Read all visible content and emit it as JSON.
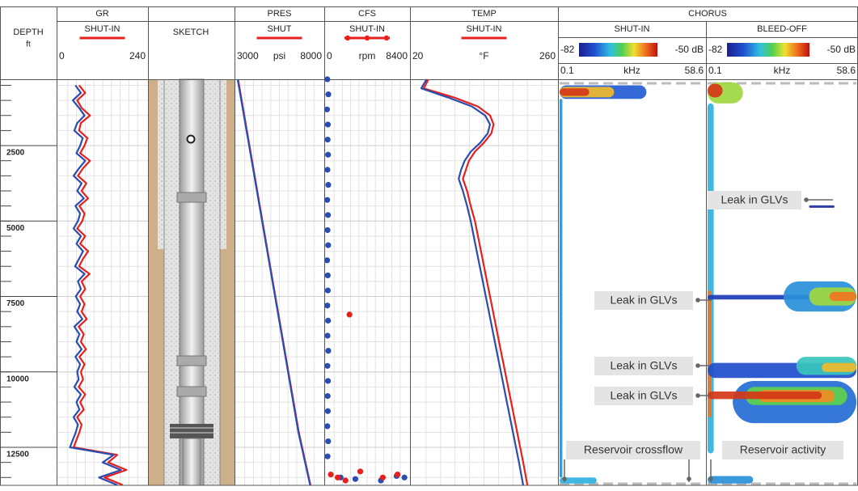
{
  "depth_axis": {
    "title": "DEPTH",
    "unit": "ft",
    "ylim": [
      300,
      13760
    ],
    "yticks": [
      2500,
      5000,
      7500,
      10000,
      12500
    ]
  },
  "sketch": {
    "title": "SKETCH"
  },
  "chart_data": [
    {
      "type": "line",
      "title": "GR",
      "xlim": [
        0,
        240
      ],
      "xticks": [
        0,
        240
      ],
      "series": [
        {
          "name": "SHUT-IN",
          "color": "#e8201c",
          "depth": [
            500,
            750,
            1000,
            1250,
            1500,
            1750,
            2000,
            2250,
            2500,
            2750,
            3000,
            3250,
            3500,
            3750,
            4000,
            4250,
            4500,
            4750,
            5000,
            5250,
            5500,
            5750,
            6000,
            6250,
            6500,
            6750,
            7000,
            7250,
            7500,
            7750,
            8000,
            8250,
            8500,
            8750,
            9000,
            9250,
            9500,
            9750,
            10000,
            10250,
            10500,
            10750,
            11000,
            11250,
            11500,
            11750,
            12000,
            12250,
            12500,
            12750,
            13000,
            13250,
            13500,
            13750
          ],
          "values": [
            55,
            72,
            50,
            62,
            85,
            60,
            55,
            78,
            70,
            58,
            85,
            66,
            52,
            75,
            62,
            80,
            56,
            70,
            64,
            50,
            72,
            58,
            80,
            66,
            55,
            84,
            62,
            72,
            58,
            70,
            62,
            76,
            54,
            68,
            60,
            74,
            56,
            70,
            60,
            66,
            54,
            72,
            58,
            68,
            50,
            62,
            56,
            48,
            40,
            160,
            135,
            185,
            125,
            175
          ]
        },
        {
          "color": "#2b4cb0",
          "depth": [
            500,
            750,
            1000,
            1250,
            1500,
            1750,
            2000,
            2250,
            2500,
            2750,
            3000,
            3250,
            3500,
            3750,
            4000,
            4250,
            4500,
            4750,
            5000,
            5250,
            5500,
            5750,
            6000,
            6250,
            6500,
            6750,
            7000,
            7250,
            7500,
            7750,
            8000,
            8250,
            8500,
            8750,
            9000,
            9250,
            9500,
            9750,
            10000,
            10250,
            10500,
            10750,
            11000,
            11250,
            11500,
            11750,
            12000,
            12250,
            12500,
            12750,
            13000,
            13250,
            13500,
            13750
          ],
          "values": [
            45,
            60,
            38,
            55,
            70,
            50,
            42,
            65,
            58,
            48,
            72,
            55,
            40,
            62,
            50,
            68,
            45,
            58,
            52,
            40,
            60,
            48,
            66,
            55,
            44,
            70,
            52,
            60,
            46,
            58,
            50,
            64,
            42,
            56,
            48,
            62,
            45,
            58,
            50,
            54,
            42,
            60,
            48,
            56,
            40,
            52,
            46,
            38,
            30,
            150,
            120,
            170,
            110,
            160
          ]
        }
      ]
    },
    {
      "type": "line",
      "title": "PRES",
      "unit": "psi",
      "xlim": [
        3000,
        8000
      ],
      "xticks": [
        3000,
        8000
      ],
      "series": [
        {
          "name": "SHUT",
          "color": "#e8201c",
          "depth": [
            300,
            3000,
            6000,
            9000,
            12000,
            13760
          ],
          "values": [
            3110,
            3920,
            4820,
            5720,
            6620,
            7300
          ]
        },
        {
          "color": "#2b4cb0",
          "depth": [
            300,
            3000,
            6000,
            9000,
            12000,
            13760
          ],
          "values": [
            3090,
            3900,
            4800,
            5700,
            6600,
            7280
          ]
        }
      ]
    },
    {
      "type": "scatter",
      "title": "CFS",
      "unit": "rpm",
      "xlim": [
        0,
        8400
      ],
      "xticks": [
        0,
        8400
      ],
      "series": [
        {
          "name": "SHUT-IN",
          "color": "#e8201c",
          "depth": [
            8100,
            13300,
            13400,
            13500,
            13600,
            13500,
            13400
          ],
          "values": [
            2400,
            3500,
            500,
            1200,
            2000,
            5800,
            7300
          ]
        },
        {
          "color": "#2b4cb0",
          "depth": [
            300,
            800,
            1300,
            1800,
            2300,
            2800,
            3300,
            3800,
            4300,
            4800,
            5300,
            5800,
            6300,
            6800,
            7300,
            7800,
            8300,
            8800,
            9300,
            9800,
            10300,
            10800,
            11300,
            11800,
            12300,
            12800,
            13500,
            13550,
            13600,
            13450,
            13500
          ],
          "values": [
            150,
            250,
            120,
            200,
            180,
            220,
            160,
            240,
            140,
            210,
            170,
            230,
            130,
            190,
            200,
            150,
            220,
            170,
            240,
            160,
            210,
            180,
            200,
            150,
            230,
            170,
            1500,
            3000,
            5600,
            7200,
            8000
          ]
        }
      ]
    },
    {
      "type": "line",
      "title": "TEMP",
      "unit": "°F",
      "xlim": [
        20,
        260
      ],
      "xticks": [
        20,
        260
      ],
      "series": [
        {
          "name": "SHUT-IN",
          "color": "#e8201c",
          "depth": [
            300,
            600,
            900,
            1200,
            1500,
            1800,
            2100,
            2400,
            2700,
            3000,
            3300,
            3600,
            4000,
            4500,
            5000,
            6000,
            7000,
            8000,
            9000,
            10000,
            11000,
            12000,
            13000,
            13760
          ],
          "values": [
            48,
            40,
            90,
            130,
            150,
            156,
            152,
            140,
            125,
            115,
            110,
            105,
            112,
            118,
            125,
            135,
            145,
            155,
            165,
            175,
            185,
            195,
            205,
            212
          ]
        },
        {
          "color": "#2b4cb0",
          "depth": [
            300,
            600,
            900,
            1200,
            1500,
            1800,
            2100,
            2400,
            2700,
            3000,
            3300,
            3600,
            4000,
            4500,
            5000,
            6000,
            7000,
            8000,
            9000,
            10000,
            11000,
            12000,
            13000,
            13760
          ],
          "values": [
            45,
            36,
            80,
            120,
            142,
            150,
            146,
            134,
            118,
            108,
            102,
            98,
            105,
            112,
            118,
            128,
            138,
            148,
            158,
            168,
            178,
            188,
            198,
            205
          ]
        }
      ]
    },
    {
      "type": "heatmap",
      "title": "CHORUS",
      "unit": "kHz",
      "xlim": [
        0.1,
        58.6
      ],
      "xticks": [
        0.1,
        58.6
      ],
      "clim": [
        -82,
        -50
      ],
      "cticks": [
        -82,
        {
          "value": -50,
          "label": "-50 dB"
        }
      ],
      "panels": [
        {
          "name": "SHUT-IN",
          "events": [
            {
              "top": 500,
              "bottom": 950,
              "from": 0.1,
              "to": 35,
              "db": -75
            },
            {
              "top": 550,
              "bottom": 900,
              "from": 0.1,
              "to": 22,
              "db": -58
            },
            {
              "top": 600,
              "bottom": 850,
              "from": 0.1,
              "to": 12,
              "db": -52
            },
            {
              "top": 950,
              "bottom": 13500,
              "from": 0.1,
              "to": 1.2,
              "db": -72
            },
            {
              "top": 13500,
              "bottom": 13700,
              "from": 0.1,
              "to": 15,
              "db": -70
            }
          ]
        },
        {
          "name": "BLEED-OFF",
          "events": [
            {
              "top": 400,
              "bottom": 1100,
              "from": 0.1,
              "to": 14,
              "db": -62
            },
            {
              "top": 450,
              "bottom": 900,
              "from": 0.1,
              "to": 6,
              "db": -52
            },
            {
              "top": 1100,
              "bottom": 12700,
              "from": 0.1,
              "to": 2.5,
              "db": -70
            },
            {
              "top": 7300,
              "bottom": 11500,
              "from": 0.1,
              "to": 1.5,
              "db": -55
            },
            {
              "top": 4480,
              "bottom": 4560,
              "from": 40,
              "to": 50,
              "db": -80
            },
            {
              "top": 7450,
              "bottom": 7600,
              "from": 0.1,
              "to": 58.6,
              "db": -78
            },
            {
              "top": 7000,
              "bottom": 8000,
              "from": 30,
              "to": 58.6,
              "db": -72
            },
            {
              "top": 7200,
              "bottom": 7800,
              "from": 40,
              "to": 58.6,
              "db": -62
            },
            {
              "top": 7350,
              "bottom": 7650,
              "from": 48,
              "to": 58.6,
              "db": -55
            },
            {
              "top": 9700,
              "bottom": 10200,
              "from": 0.1,
              "to": 58.6,
              "db": -76
            },
            {
              "top": 9500,
              "bottom": 10100,
              "from": 35,
              "to": 58.6,
              "db": -68
            },
            {
              "top": 9700,
              "bottom": 10000,
              "from": 45,
              "to": 58.6,
              "db": -58
            },
            {
              "top": 10300,
              "bottom": 11700,
              "from": 10,
              "to": 58.6,
              "db": -74
            },
            {
              "top": 10500,
              "bottom": 11100,
              "from": 15,
              "to": 55,
              "db": -64
            },
            {
              "top": 10600,
              "bottom": 11000,
              "from": 20,
              "to": 50,
              "db": -56
            },
            {
              "top": 10650,
              "bottom": 10900,
              "from": 0.1,
              "to": 45,
              "db": -52
            },
            {
              "top": 13450,
              "bottom": 13700,
              "from": 0.1,
              "to": 18,
              "db": -72
            }
          ]
        }
      ],
      "annotations": [
        {
          "text": "Leak in GLVs",
          "panel": 1
        },
        {
          "text": "Leak in GLVs",
          "panel": 0
        },
        {
          "text": "Leak in GLVs",
          "panel": 0
        },
        {
          "text": "Leak in GLVs",
          "panel": 0
        },
        {
          "text": "Reservoir crossflow",
          "panel": 0
        },
        {
          "text": "Reservoir activity",
          "panel": 1
        }
      ]
    }
  ]
}
